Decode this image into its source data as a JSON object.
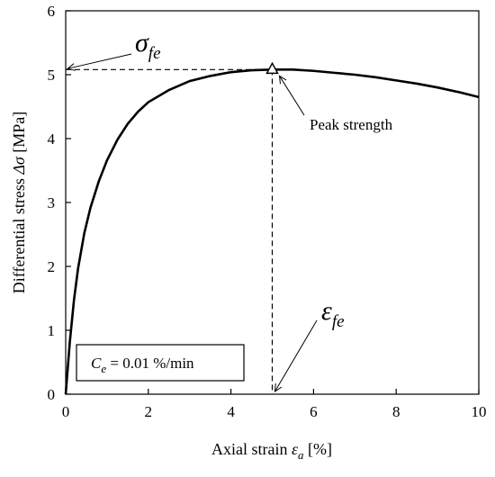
{
  "chart_data": {
    "type": "line",
    "xlabel": {
      "prefix": "Axial strain ",
      "symbol": "ε",
      "subscript": "a",
      "suffix": " [%]"
    },
    "ylabel": {
      "prefix": "Differential stress ",
      "symbol": "Δσ",
      "suffix": " [MPa]"
    },
    "xlim": [
      0,
      10
    ],
    "ylim": [
      0,
      6
    ],
    "x_ticks": [
      "0",
      "2",
      "4",
      "6",
      "8",
      "10"
    ],
    "y_ticks": [
      "0",
      "1",
      "2",
      "3",
      "4",
      "5",
      "6"
    ],
    "grid": false,
    "series": [
      {
        "x": [
          0,
          0.1,
          0.2,
          0.3,
          0.45,
          0.6,
          0.8,
          1.0,
          1.25,
          1.5,
          1.75,
          2.0,
          2.5,
          3.0,
          3.5,
          4.0,
          4.5,
          5.0,
          5.5,
          6.0,
          6.5,
          7.0,
          7.5,
          8.0,
          8.5,
          9.0,
          9.5,
          10.0
        ],
        "y": [
          0,
          0.82,
          1.47,
          1.97,
          2.52,
          2.92,
          3.33,
          3.66,
          3.98,
          4.23,
          4.42,
          4.57,
          4.76,
          4.9,
          4.98,
          5.04,
          5.07,
          5.08,
          5.08,
          5.06,
          5.03,
          5.0,
          4.96,
          4.91,
          4.86,
          4.8,
          4.73,
          4.65
        ]
      }
    ],
    "annotations": {
      "sigma_fe": {
        "symbol": "σ",
        "subscript": "fe",
        "value": 5.08
      },
      "eps_fe": {
        "symbol": "ε",
        "subscript": "fe",
        "value": 5.0
      },
      "peak": {
        "label": "Peak strength",
        "x": 5.0,
        "y": 5.08
      },
      "rate_box": {
        "symbol": "C",
        "subscript": "e",
        "text": " = 0.01 %/min"
      }
    }
  }
}
